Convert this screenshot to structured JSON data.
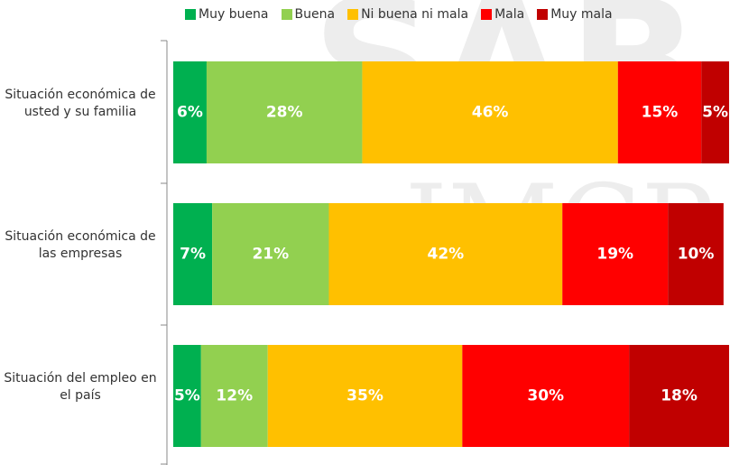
{
  "chart_data": {
    "type": "stacked_bar_horizontal",
    "categories": [
      "Situación económica de usted y su familia",
      "Situación económica de las empresas",
      "Situación del empleo en el país"
    ],
    "series": [
      {
        "name": "Muy buena",
        "color": "#00b050",
        "values": [
          6,
          7,
          5
        ],
        "value_labels": [
          "6%",
          "7%",
          "5%"
        ]
      },
      {
        "name": "Buena",
        "color": "#92d050",
        "values": [
          28,
          21,
          12
        ],
        "value_labels": [
          "28%",
          "21%",
          "12%"
        ]
      },
      {
        "name": "Ni buena ni mala",
        "color": "#ffc000",
        "values": [
          46,
          42,
          35
        ],
        "value_labels": [
          "46%",
          "42%",
          "35%"
        ]
      },
      {
        "name": "Mala",
        "color": "#ff0000",
        "values": [
          15,
          19,
          30
        ],
        "value_labels": [
          "15%",
          "19%",
          "30%"
        ]
      },
      {
        "name": "Muy mala",
        "color": "#c00000",
        "values": [
          5,
          10,
          18
        ],
        "value_labels": [
          "5%",
          "10%",
          "18%"
        ]
      }
    ],
    "xlim": [
      0,
      100
    ],
    "watermark": [
      "SAB",
      "IMCP"
    ]
  }
}
